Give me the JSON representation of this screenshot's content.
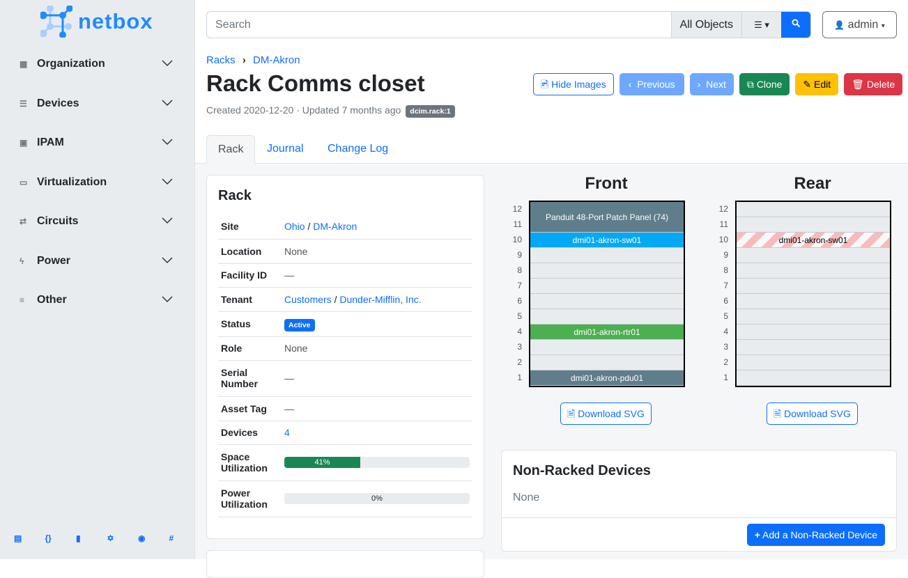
{
  "app": {
    "logo_text": "netbox",
    "brand_color": "#1f8cff"
  },
  "sidebar": {
    "items": [
      {
        "label": "Organization",
        "icon": "building-icon"
      },
      {
        "label": "Devices",
        "icon": "server-icon"
      },
      {
        "label": "IPAM",
        "icon": "ip-icon"
      },
      {
        "label": "Virtualization",
        "icon": "monitor-icon"
      },
      {
        "label": "Circuits",
        "icon": "transit-icon"
      },
      {
        "label": "Power",
        "icon": "lightning-icon"
      },
      {
        "label": "Other",
        "icon": "list-icon"
      }
    ],
    "footer_icons": [
      "book-icon",
      "api-icon",
      "docs-icon",
      "graphql-icon",
      "github-icon",
      "slack-icon"
    ]
  },
  "header": {
    "search_placeholder": "Search",
    "object_filter": "All Objects",
    "user": "admin"
  },
  "breadcrumb": [
    "Racks",
    "DM-Akron"
  ],
  "page": {
    "title": "Rack Comms closet",
    "meta": "Created 2020-12-20 · Updated 7 months ago",
    "tag": "dcim.rack:1"
  },
  "buttons": {
    "hide_images": "Hide Images",
    "previous": "Previous",
    "next": "Next",
    "clone": "Clone",
    "edit": "Edit",
    "delete": "Delete"
  },
  "tabs": [
    "Rack",
    "Journal",
    "Change Log"
  ],
  "rack_card": {
    "title": "Rack",
    "rows": {
      "site_label": "Site",
      "site_region": "Ohio",
      "site_name": "DM-Akron",
      "location_label": "Location",
      "location": "None",
      "facility_label": "Facility ID",
      "facility": "—",
      "tenant_label": "Tenant",
      "tenant_group": "Customers",
      "tenant": "Dunder-Mifflin, Inc.",
      "status_label": "Status",
      "status": "Active",
      "role_label": "Role",
      "role": "None",
      "serial_label": "Serial Number",
      "serial": "—",
      "asset_label": "Asset Tag",
      "asset": "—",
      "devices_label": "Devices",
      "devices": "4",
      "space_label": "Space Utilization",
      "space": "41%",
      "space_value": 41,
      "power_label": "Power Utilization",
      "power": "0%",
      "power_value": 0
    }
  },
  "elevation": {
    "front_label": "Front",
    "rear_label": "Rear",
    "units": [
      12,
      11,
      10,
      9,
      8,
      7,
      6,
      5,
      4,
      3,
      2,
      1
    ],
    "download": "Download SVG",
    "front_devices": [
      {
        "name": "Panduit 48-Port Patch Panel (74)",
        "top": 12,
        "height": 2,
        "color": "#607d8b"
      },
      {
        "name": "dmi01-akron-sw01",
        "top": 10,
        "height": 1,
        "color": "#03a9f4"
      },
      {
        "name": "dmi01-akron-rtr01",
        "top": 4,
        "height": 1,
        "color": "#4caf50"
      },
      {
        "name": "dmi01-akron-pdu01",
        "top": 1,
        "height": 1,
        "color": "#607d8b"
      }
    ],
    "rear_devices": [
      {
        "name": "dmi01-akron-sw01",
        "top": 10,
        "height": 1,
        "color": "#f8bbbb"
      }
    ]
  },
  "non_racked": {
    "title": "Non-Racked Devices",
    "value": "None",
    "add": "Add a Non-Racked Device"
  }
}
